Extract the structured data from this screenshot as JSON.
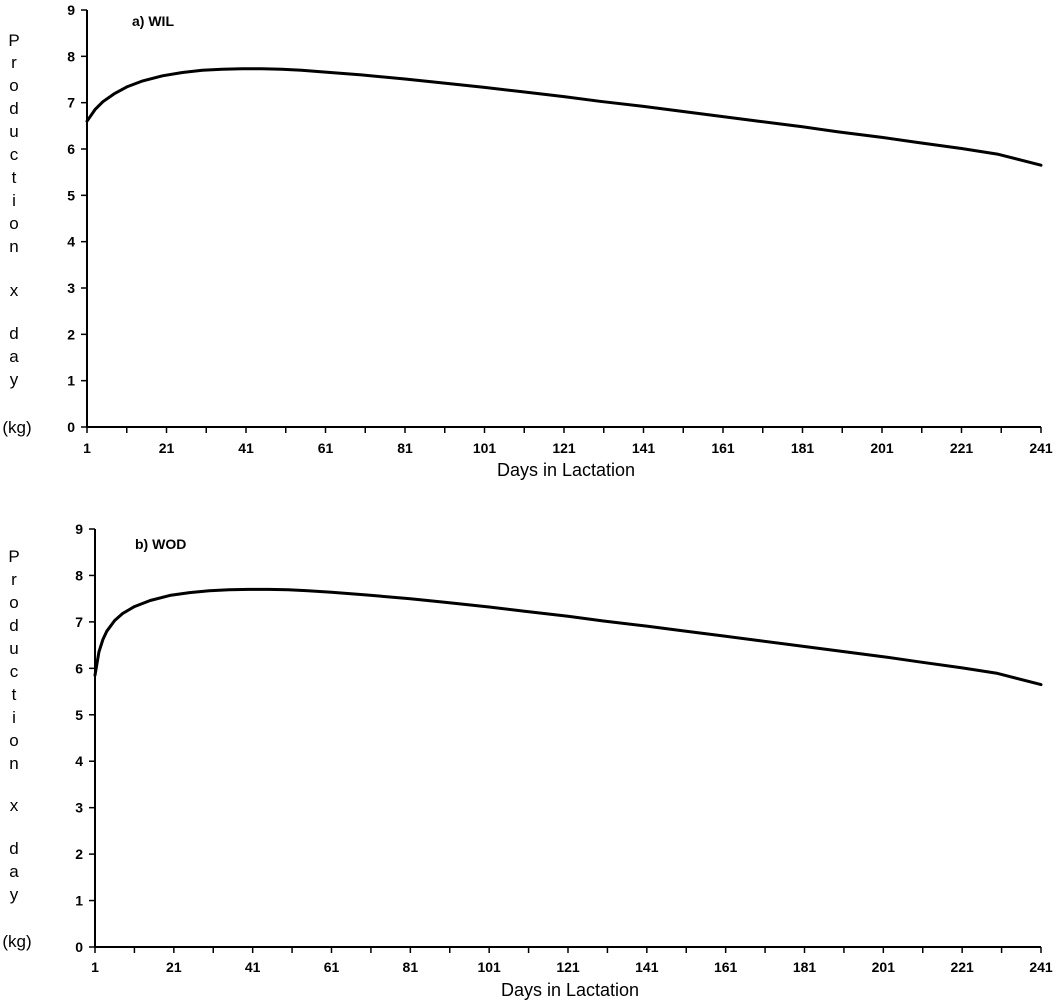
{
  "chart_data": [
    {
      "type": "line",
      "title": "a) WIL",
      "xlabel": "Days in Lactation",
      "ylabel": [
        "P",
        "r",
        "o",
        "d",
        "u",
        "c",
        "t",
        "i",
        "o",
        "n",
        "x",
        "d",
        "a",
        "y",
        "(kg)"
      ],
      "xlim": [
        1,
        241
      ],
      "ylim": [
        0,
        9
      ],
      "x_tick_labels": [
        "1",
        "21",
        "41",
        "61",
        "81",
        "101",
        "121",
        "141",
        "161",
        "181",
        "201",
        "221",
        "241"
      ],
      "y_tick_labels": [
        "0",
        "1",
        "2",
        "3",
        "4",
        "5",
        "6",
        "7",
        "8",
        "9"
      ],
      "grid": false,
      "series": [
        {
          "x": [
            1,
            3,
            5,
            8,
            11,
            15,
            20,
            25,
            30,
            35,
            40,
            45,
            50,
            55,
            61,
            70,
            81,
            90,
            101,
            110,
            121,
            130,
            141,
            150,
            161,
            170,
            181,
            190,
            201,
            210,
            221,
            230,
            241
          ],
          "values": [
            6.6,
            6.85,
            7.02,
            7.2,
            7.34,
            7.47,
            7.58,
            7.65,
            7.7,
            7.72,
            7.73,
            7.73,
            7.72,
            7.7,
            7.66,
            7.6,
            7.51,
            7.43,
            7.33,
            7.24,
            7.13,
            7.03,
            6.92,
            6.82,
            6.7,
            6.6,
            6.48,
            6.37,
            6.25,
            6.14,
            6.01,
            5.89,
            5.65
          ]
        }
      ]
    },
    {
      "type": "line",
      "title": "b) WOD",
      "xlabel": "Days in Lactation",
      "ylabel": [
        "P",
        "r",
        "o",
        "d",
        "u",
        "c",
        "t",
        "i",
        "o",
        "n",
        "x",
        "d",
        "a",
        "y",
        "(kg)"
      ],
      "xlim": [
        1,
        241
      ],
      "ylim": [
        0,
        9
      ],
      "x_tick_labels": [
        "1",
        "21",
        "41",
        "61",
        "81",
        "101",
        "121",
        "141",
        "161",
        "181",
        "201",
        "221",
        "241"
      ],
      "y_tick_labels": [
        "0",
        "1",
        "2",
        "3",
        "4",
        "5",
        "6",
        "7",
        "8",
        "9"
      ],
      "grid": false,
      "series": [
        {
          "x": [
            1,
            2,
            3,
            4,
            6,
            8,
            11,
            15,
            20,
            25,
            30,
            35,
            40,
            45,
            50,
            55,
            61,
            70,
            81,
            90,
            101,
            110,
            121,
            130,
            141,
            150,
            161,
            170,
            181,
            190,
            201,
            210,
            221,
            230,
            241
          ],
          "values": [
            5.85,
            6.35,
            6.62,
            6.8,
            7.03,
            7.18,
            7.33,
            7.46,
            7.57,
            7.63,
            7.67,
            7.69,
            7.7,
            7.7,
            7.69,
            7.67,
            7.64,
            7.58,
            7.5,
            7.42,
            7.32,
            7.23,
            7.12,
            7.02,
            6.91,
            6.81,
            6.69,
            6.59,
            6.47,
            6.37,
            6.25,
            6.14,
            6.01,
            5.89,
            5.65
          ]
        }
      ]
    }
  ]
}
